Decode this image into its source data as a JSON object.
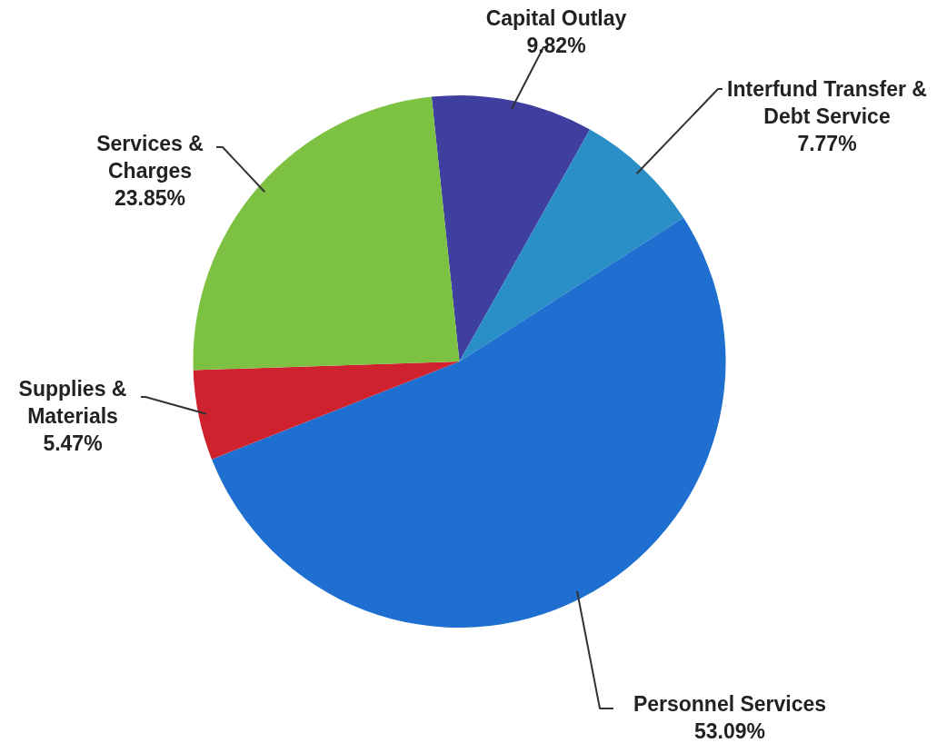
{
  "chart_data": {
    "type": "pie",
    "categories": [
      "Capital Outlay",
      "Interfund Transfer & Debt Service",
      "Personnel Services",
      "Supplies & Materials",
      "Services & Charges"
    ],
    "values": [
      9.82,
      7.77,
      53.09,
      5.47,
      23.85
    ],
    "value_labels": [
      "9.82%",
      "7.77%",
      "53.09%",
      "5.47%",
      "23.85%"
    ],
    "colors": [
      "#3f3f9f",
      "#2b8fc7",
      "#1f6fd0",
      "#d0222e",
      "#7dc143"
    ],
    "legend": false
  }
}
